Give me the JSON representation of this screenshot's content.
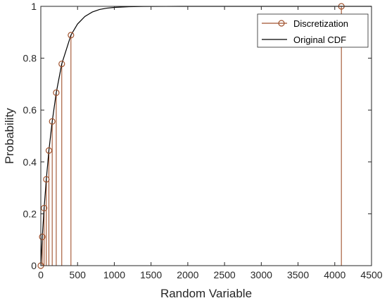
{
  "chart_data": {
    "type": "line",
    "xlabel": "Random Variable",
    "ylabel": "Probability",
    "xlim": [
      0,
      4500
    ],
    "ylim": [
      0,
      1
    ],
    "x_ticks": [
      0,
      500,
      1000,
      1500,
      2000,
      2500,
      3000,
      3500,
      4000,
      4500
    ],
    "y_ticks": [
      0,
      0.2,
      0.4,
      0.6,
      0.8,
      1
    ],
    "grid": false,
    "legend_position": "top-right",
    "series": [
      {
        "name": "Discretization",
        "style": "stem",
        "color": "#A0522D",
        "marker": "circle",
        "x": [
          0,
          20,
          45,
          75,
          110,
          155,
          210,
          285,
          410,
          4090
        ],
        "y": [
          0,
          0.111,
          0.222,
          0.333,
          0.444,
          0.556,
          0.667,
          0.778,
          0.889,
          1.0
        ]
      },
      {
        "name": "Original CDF",
        "style": "line",
        "color": "#000000",
        "x": [
          0,
          20,
          45,
          75,
          110,
          155,
          210,
          285,
          410,
          500,
          600,
          700,
          800,
          900,
          1000,
          1200,
          1400,
          1700,
          2000,
          2500,
          3000,
          3500,
          4000,
          4500
        ],
        "y": [
          0,
          0.111,
          0.222,
          0.333,
          0.444,
          0.556,
          0.667,
          0.778,
          0.889,
          0.932,
          0.961,
          0.978,
          0.988,
          0.993,
          0.996,
          0.9985,
          0.9995,
          0.9999,
          1.0,
          1.0,
          1.0,
          1.0,
          1.0,
          1.0
        ]
      }
    ]
  }
}
